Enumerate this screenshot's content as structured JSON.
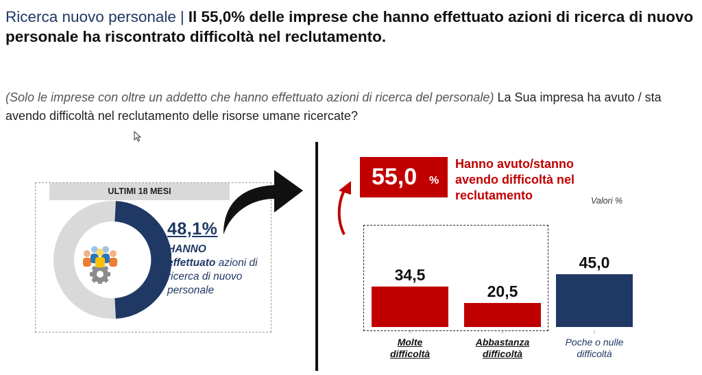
{
  "header": {
    "lead": "Ricerca nuovo personale",
    "separator": "|",
    "headline": "Il 55,0% delle imprese che hanno effettuato azioni di ricerca di nuovo personale ha riscontrato difficoltà nel reclutamento."
  },
  "question": {
    "note": "(Solo le imprese con oltre un addetto che hanno effettuato azioni di ricerca del personale)",
    "text": "La Sua impresa ha avuto / sta avendo difficoltà nel reclutamento delle risorse umane ricercate?"
  },
  "left_panel": {
    "tag": "ULTIMI 18 MESI",
    "percentage": "48,1%",
    "desc_bold": "HANNO",
    "desc_bold_italic": "effettuato",
    "desc_rest": "azioni di ricerca di nuovo personale",
    "donut_share": 0.481,
    "icon": "people-gear-icon"
  },
  "highlight": {
    "value": "55,0",
    "unit": "%",
    "text": "Hanno avuto/stanno avendo difficoltà nel reclutamento",
    "valori": "Valori %"
  },
  "colors": {
    "navy": "#1f3864",
    "red": "#c00000",
    "grey": "#d9d9d9"
  },
  "chart_data": {
    "type": "bar",
    "categories": [
      "Molte difficoltà",
      "Abbastanza difficoltà",
      "Poche o nulle difficoltà"
    ],
    "values": [
      34.5,
      20.5,
      45.0
    ],
    "value_labels": [
      "34,5",
      "20,5",
      "45,0"
    ],
    "bar_colors": [
      "#c00000",
      "#c00000",
      "#1f3864"
    ],
    "ticks": [
      "3",
      "2",
      "1"
    ],
    "xlabel_lines": [
      [
        "Molte",
        "difficoltà"
      ],
      [
        "Abbastanza",
        "difficoltà"
      ],
      [
        "Poche o nulle",
        "difficoltà"
      ]
    ],
    "title": "",
    "ylabel": "",
    "ylim": [
      0,
      45
    ]
  }
}
